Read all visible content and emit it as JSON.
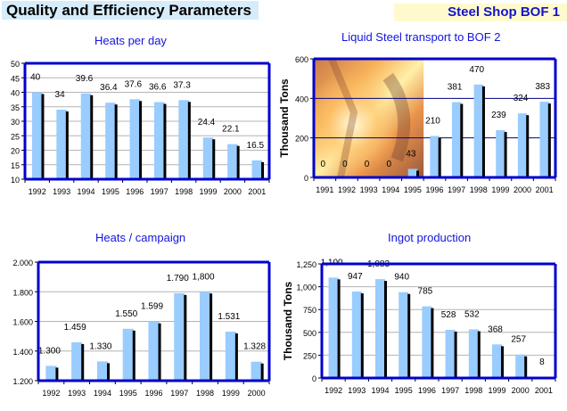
{
  "header": {
    "title": "Quality and Efficiency Parameters",
    "subtitle": "Steel Shop BOF 1"
  },
  "colors": {
    "bar": "#99ccff",
    "bar_shadow": "#000000",
    "frame": "#0000cc",
    "gridline": "#b4b4b4",
    "title": "#1414dc",
    "header_left_bg": "#d6ecfb",
    "header_right_bg": "#fffacd"
  },
  "chart_data": [
    {
      "id": "heats-per-day",
      "type": "bar",
      "title": "Heats per day",
      "xlabel": "",
      "ylabel": "",
      "categories": [
        "1992",
        "1993",
        "1994",
        "1995",
        "1996",
        "1997",
        "1998",
        "1999",
        "2000",
        "2001"
      ],
      "values": [
        40,
        34,
        39.6,
        36.4,
        37.6,
        36.6,
        37.3,
        24.4,
        22.1,
        16.5
      ],
      "labels": [
        "40",
        "34",
        "39.6",
        "36.4",
        "37.6",
        "36.6",
        "37.3",
        "24.4",
        "22.1",
        "16.5"
      ],
      "ylim": [
        10,
        50
      ],
      "yticks": [
        10,
        15,
        20,
        25,
        30,
        35,
        40,
        45,
        50
      ],
      "ytick_labels": [
        "10",
        "15",
        "20",
        "25",
        "30",
        "35",
        "40",
        "45",
        "50"
      ],
      "grid": true,
      "legend": "none"
    },
    {
      "id": "liquid-steel-transport",
      "type": "bar",
      "title": "Liquid Steel transport to BOF 2",
      "xlabel": "",
      "ylabel": "Thousand Tons",
      "categories": [
        "1991",
        "1992",
        "1993",
        "1994",
        "1995",
        "1996",
        "1997",
        "1998",
        "1999",
        "2000",
        "2001"
      ],
      "values": [
        0,
        0,
        0,
        0,
        43,
        210,
        381,
        470,
        239,
        324,
        383
      ],
      "labels": [
        "0",
        "0",
        "0",
        "0",
        "43",
        "210",
        "381",
        "470",
        "239",
        "324",
        "383"
      ],
      "ylim": [
        0,
        600
      ],
      "yticks": [
        0,
        200,
        400,
        600
      ],
      "ytick_labels": [
        "0",
        "200",
        "400",
        "600"
      ],
      "grid": true,
      "legend": "none",
      "background_image": "molten steel pouring photo (1991-1995 area)"
    },
    {
      "id": "heats-per-campaign",
      "type": "bar",
      "title": "Heats / campaign",
      "xlabel": "",
      "ylabel": "",
      "categories": [
        "1992",
        "1993",
        "1994",
        "1995",
        "1996",
        "1997",
        "1998",
        "1999",
        "2000"
      ],
      "values": [
        1300,
        1459,
        1330,
        1550,
        1599,
        1790,
        1800,
        1531,
        1328
      ],
      "labels": [
        "1.300",
        "1.459",
        "1.330",
        "1.550",
        "1.599",
        "1.790",
        "1,800",
        "1.531",
        "1.328"
      ],
      "ylim": [
        1200,
        2000
      ],
      "yticks": [
        1200,
        1400,
        1600,
        1800,
        2000
      ],
      "ytick_labels": [
        "1.200",
        "1.400",
        "1.600",
        "1.800",
        "2.000"
      ],
      "grid": true,
      "legend": "none"
    },
    {
      "id": "ingot-production",
      "type": "bar",
      "title": "Ingot production",
      "xlabel": "",
      "ylabel": "Thousand Tons",
      "categories": [
        "1992",
        "1993",
        "1994",
        "1995",
        "1996",
        "1997",
        "1998",
        "1999",
        "2000",
        "2001"
      ],
      "values": [
        1100,
        947,
        1083,
        940,
        785,
        528,
        532,
        368,
        257,
        8
      ],
      "labels": [
        "1,100",
        "947",
        "1,083",
        "940",
        "785",
        "528",
        "532",
        "368",
        "257",
        "8"
      ],
      "ylim": [
        0,
        1250
      ],
      "yticks": [
        0,
        250,
        500,
        750,
        1000,
        1250
      ],
      "ytick_labels": [
        "0",
        "250",
        "500",
        "750",
        "1,000",
        "1,250"
      ],
      "grid": true,
      "legend": "none"
    }
  ]
}
